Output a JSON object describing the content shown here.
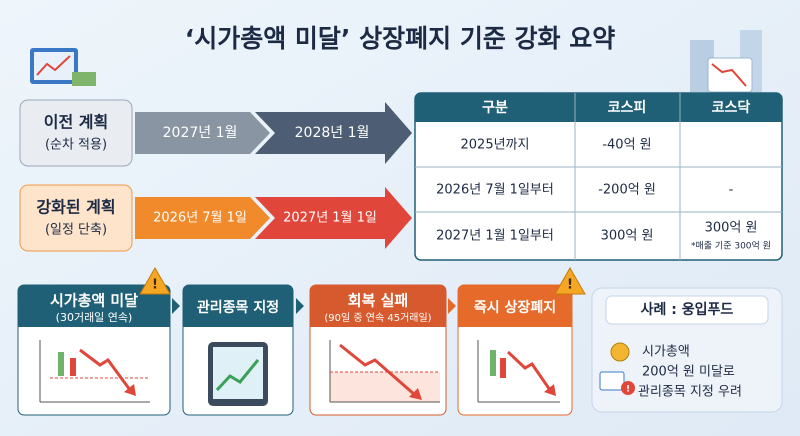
{
  "title": "‘시가총액 미달’ 상장폐지 기준 강화 요약",
  "plans": [
    {
      "label": "이전 계획",
      "note": "(순차 적용)",
      "steps": [
        "2027년 1월",
        "2028년 1월"
      ]
    },
    {
      "label": "강화된 계획",
      "note": "(일정 단축)",
      "steps": [
        "2026년 7월 1일",
        "2027년 1월 1일"
      ]
    }
  ],
  "table": {
    "headers": [
      "구분",
      "코스피",
      "코스닥"
    ],
    "rows": [
      {
        "label": "2025년까지",
        "kospi": "-40억 원"
      },
      {
        "label": "2026년 7월 1일부터",
        "kospi": "-200억 원",
        "kosdaq": "-"
      },
      {
        "label": "2027년 1월 1일부터",
        "kospi": "300억 원",
        "kosdaq": "300억 원",
        "kosdaq_note": "*매출 기준 300억 원"
      }
    ]
  },
  "process": [
    {
      "title": "시가총액 미달",
      "note": "(30거래일 연속)"
    },
    {
      "title": "관리종목 지정"
    },
    {
      "title": "회복 실패",
      "note": "(90일 중 연속 45거래일)"
    },
    {
      "title": "즉시 상장폐지"
    }
  ],
  "case": {
    "title": "사례 : 웅입푸드",
    "lines": [
      "시가총액",
      "200억 원 미달로",
      "관리종목 지정 우려"
    ]
  }
}
